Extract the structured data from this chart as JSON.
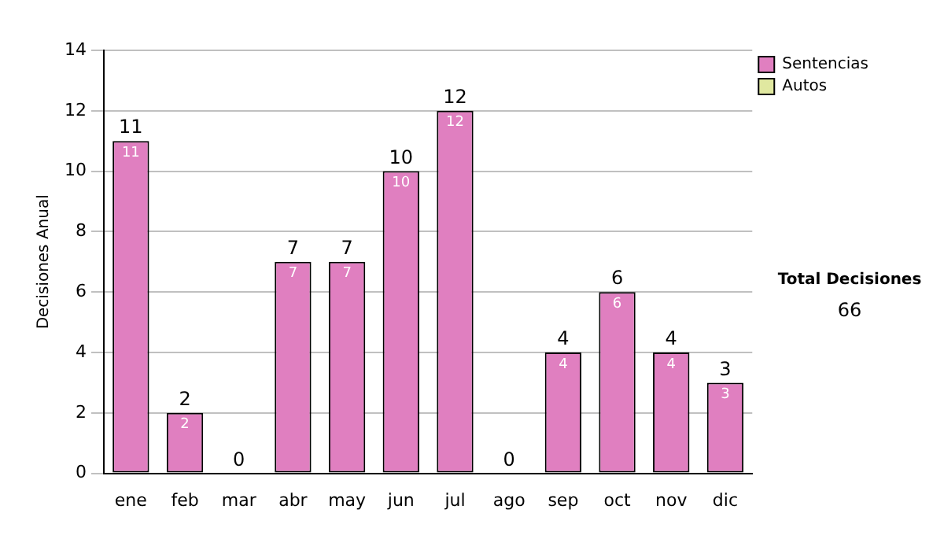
{
  "chart_data": {
    "type": "bar",
    "ylabel": "Decisiones Anual",
    "categories": [
      "ene",
      "feb",
      "mar",
      "abr",
      "may",
      "jun",
      "jul",
      "ago",
      "sep",
      "oct",
      "nov",
      "dic"
    ],
    "series": [
      {
        "name": "Sentencias",
        "color": "#e07fc0",
        "values": [
          11,
          2,
          0,
          7,
          7,
          10,
          12,
          0,
          4,
          6,
          4,
          3
        ],
        "value_labels": [
          "11",
          "2",
          null,
          "7",
          "7",
          "10",
          "12",
          null,
          "4",
          "6",
          "4",
          "3"
        ]
      },
      {
        "name": "Autos",
        "color": "#e0e8a0",
        "values": [
          0,
          0,
          0,
          0,
          0,
          0,
          0,
          0,
          0,
          0,
          0,
          0
        ]
      }
    ],
    "stacked": true,
    "ylim": [
      0,
      14
    ],
    "yticks": [
      0,
      2,
      4,
      6,
      8,
      10,
      12,
      14
    ],
    "grid": "y",
    "legend": "right",
    "totals": [
      "11",
      "2",
      "0",
      "7",
      "7",
      "10",
      "12",
      "0",
      "4",
      "6",
      "4",
      "3"
    ],
    "annotations": [
      "Total Decisiones",
      "66"
    ]
  }
}
